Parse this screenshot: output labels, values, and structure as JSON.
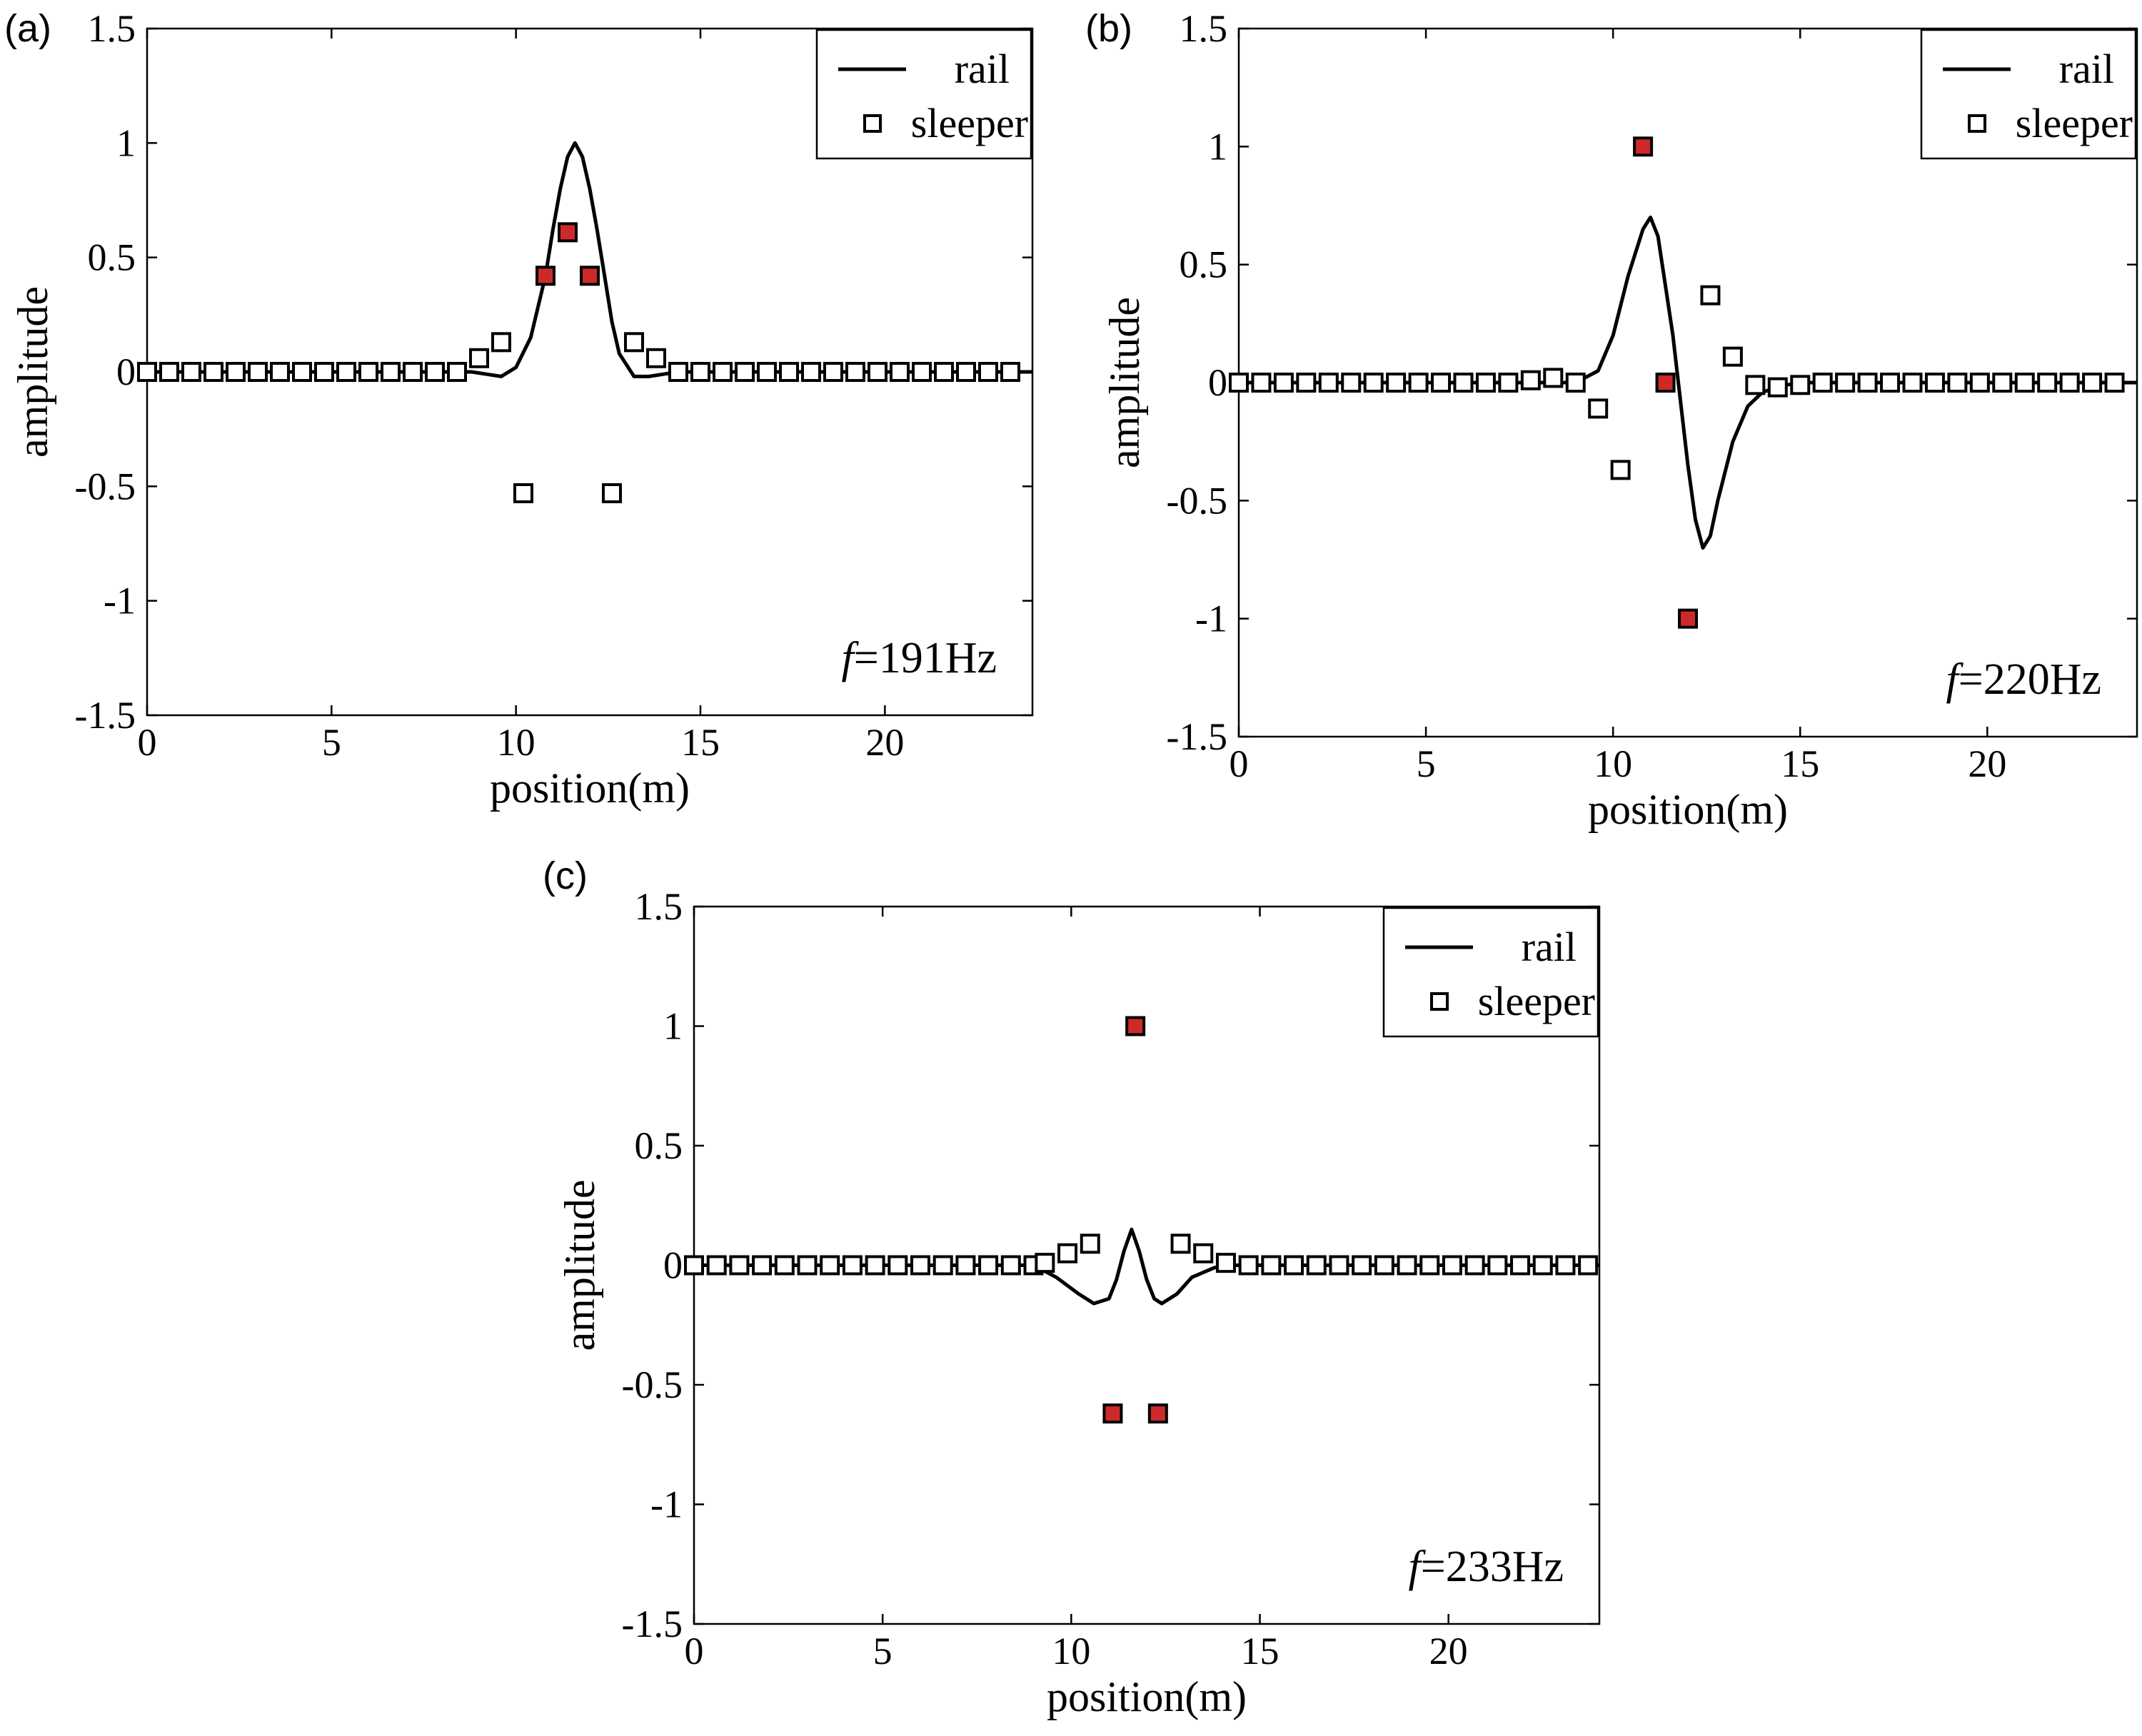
{
  "chart_data": [
    {
      "panel_label": "(a)",
      "type": "line",
      "xlabel": "position(m)",
      "ylabel": "amplitude",
      "xlim": [
        0,
        24
      ],
      "ylim": [
        -1.5,
        1.5
      ],
      "xticks": [
        0,
        5,
        10,
        15,
        20
      ],
      "yticks": [
        -1.5,
        -1,
        -0.5,
        0,
        0.5,
        1,
        1.5
      ],
      "xtick_labels": [
        "0",
        "5",
        "10",
        "15",
        "20"
      ],
      "ytick_labels": [
        "-1.5",
        "-1",
        "-0.5",
        "0",
        "0.5",
        "1",
        "1.5"
      ],
      "grid": false,
      "legend": {
        "position": "top-right",
        "entries": [
          "rail",
          "sleeper"
        ]
      },
      "annotation": {
        "italic": "f",
        "text": "=191Hz"
      },
      "series": [
        {
          "name": "rail",
          "style": "line",
          "color": "#000000",
          "x": [
            0,
            8.8,
            9.2,
            9.6,
            10.0,
            10.4,
            10.8,
            11.0,
            11.2,
            11.4,
            11.6,
            11.8,
            12.0,
            12.2,
            12.4,
            12.6,
            12.8,
            13.2,
            13.6,
            14.0,
            14.4,
            14.8,
            24
          ],
          "y": [
            0,
            0,
            -0.01,
            -0.02,
            0.02,
            0.15,
            0.42,
            0.62,
            0.8,
            0.94,
            1.0,
            0.94,
            0.8,
            0.62,
            0.42,
            0.22,
            0.08,
            -0.02,
            -0.02,
            -0.01,
            0.0,
            0.0,
            0.0
          ]
        },
        {
          "name": "sleeper",
          "style": "square-markers",
          "color": "#000000",
          "x": [
            0,
            0.6,
            1.2,
            1.8,
            2.4,
            3.0,
            3.6,
            4.2,
            4.8,
            5.4,
            6.0,
            6.6,
            7.2,
            7.8,
            8.4,
            9.0,
            9.6,
            10.2,
            10.8,
            11.4,
            12.0,
            12.6,
            13.2,
            13.8,
            14.4,
            15.0,
            15.6,
            16.2,
            16.8,
            17.4,
            18.0,
            18.6,
            19.2,
            19.8,
            20.4,
            21.0,
            21.6,
            22.2,
            22.8,
            23.4
          ],
          "y": [
            0,
            0,
            0,
            0,
            0,
            0,
            0,
            0,
            0,
            0,
            0,
            0,
            0,
            0,
            0,
            0.06,
            0.13,
            -0.53,
            0.42,
            0.61,
            0.42,
            -0.53,
            0.13,
            0.06,
            0,
            0,
            0,
            0,
            0,
            0,
            0,
            0,
            0,
            0,
            0,
            0,
            0,
            0,
            0,
            0
          ],
          "highlighted_indices": [
            18,
            19,
            20
          ],
          "highlight_color": "#cc2a2a"
        }
      ]
    },
    {
      "panel_label": "(b)",
      "type": "line",
      "xlabel": "position(m)",
      "ylabel": "amplitude",
      "xlim": [
        0,
        24
      ],
      "ylim": [
        -1.5,
        1.5
      ],
      "xticks": [
        0,
        5,
        10,
        15,
        20
      ],
      "yticks": [
        -1.5,
        -1,
        -0.5,
        0,
        0.5,
        1,
        1.5
      ],
      "xtick_labels": [
        "0",
        "5",
        "10",
        "15",
        "20"
      ],
      "ytick_labels": [
        "-1.5",
        "-1",
        "-0.5",
        "0",
        "0.5",
        "1",
        "1.5"
      ],
      "grid": false,
      "legend": {
        "position": "top-right",
        "entries": [
          "rail",
          "sleeper"
        ]
      },
      "annotation": {
        "italic": "f",
        "text": "=220Hz"
      },
      "series": [
        {
          "name": "rail",
          "style": "line",
          "color": "#000000",
          "x": [
            0,
            8.4,
            9.0,
            9.6,
            10.0,
            10.4,
            10.8,
            11.0,
            11.2,
            11.6,
            12.0,
            12.2,
            12.4,
            12.6,
            12.8,
            13.2,
            13.6,
            14.0,
            14.6,
            15.2,
            24
          ],
          "y": [
            0,
            0,
            0,
            0.05,
            0.2,
            0.45,
            0.65,
            0.7,
            0.62,
            0.2,
            -0.35,
            -0.58,
            -0.7,
            -0.65,
            -0.5,
            -0.25,
            -0.1,
            -0.04,
            -0.01,
            0,
            0
          ]
        },
        {
          "name": "sleeper",
          "style": "square-markers",
          "color": "#000000",
          "x": [
            0,
            0.6,
            1.2,
            1.8,
            2.4,
            3.0,
            3.6,
            4.2,
            4.8,
            5.4,
            6.0,
            6.6,
            7.2,
            7.8,
            8.4,
            9.0,
            9.6,
            10.2,
            10.8,
            11.4,
            12.0,
            12.6,
            13.2,
            13.8,
            14.4,
            15.0,
            15.6,
            16.2,
            16.8,
            17.4,
            18.0,
            18.6,
            19.2,
            19.8,
            20.4,
            21.0,
            21.6,
            22.2,
            22.8,
            23.4
          ],
          "y": [
            0,
            0,
            0,
            0,
            0,
            0,
            0,
            0,
            0,
            0,
            0,
            0,
            0,
            0.01,
            0.02,
            0,
            -0.11,
            -0.37,
            1.0,
            0,
            -1.0,
            0.37,
            0.11,
            -0.01,
            -0.02,
            -0.01,
            0,
            0,
            0,
            0,
            0,
            0,
            0,
            0,
            0,
            0,
            0,
            0,
            0,
            0
          ],
          "highlighted_indices": [
            18,
            19,
            20
          ],
          "highlight_color": "#cc2a2a"
        }
      ]
    },
    {
      "panel_label": "(c)",
      "type": "line",
      "xlabel": "position(m)",
      "ylabel": "amplitude",
      "xlim": [
        0,
        24
      ],
      "ylim": [
        -1.5,
        1.5
      ],
      "xticks": [
        0,
        5,
        10,
        15,
        20
      ],
      "yticks": [
        -1.5,
        -1,
        -0.5,
        0,
        0.5,
        1,
        1.5
      ],
      "xtick_labels": [
        "0",
        "5",
        "10",
        "15",
        "20"
      ],
      "ytick_labels": [
        "-1.5",
        "-1",
        "-0.5",
        "0",
        "0.5",
        "1",
        "1.5"
      ],
      "grid": false,
      "legend": {
        "position": "top-right",
        "entries": [
          "rail",
          "sleeper"
        ]
      },
      "annotation": {
        "italic": "f",
        "text": "=233Hz"
      },
      "series": [
        {
          "name": "rail",
          "style": "line",
          "color": "#000000",
          "x": [
            0,
            9.0,
            9.6,
            10.2,
            10.6,
            11.0,
            11.2,
            11.4,
            11.6,
            11.8,
            12.0,
            12.2,
            12.4,
            12.8,
            13.2,
            13.8,
            14.4,
            24
          ],
          "y": [
            0,
            0,
            -0.05,
            -0.12,
            -0.16,
            -0.14,
            -0.06,
            0.06,
            0.15,
            0.06,
            -0.06,
            -0.14,
            -0.16,
            -0.12,
            -0.05,
            -0.01,
            0,
            0
          ]
        },
        {
          "name": "sleeper",
          "style": "square-markers",
          "color": "#000000",
          "x": [
            0,
            0.6,
            1.2,
            1.8,
            2.4,
            3.0,
            3.6,
            4.2,
            4.8,
            5.4,
            6.0,
            6.6,
            7.2,
            7.8,
            8.4,
            9.0,
            9.3,
            9.9,
            10.5,
            11.1,
            11.7,
            12.3,
            12.9,
            13.5,
            14.1,
            14.7,
            15.3,
            15.9,
            16.5,
            17.1,
            17.7,
            18.3,
            18.9,
            19.5,
            20.1,
            20.7,
            21.3,
            21.9,
            22.5,
            23.1,
            23.7
          ],
          "y": [
            0,
            0,
            0,
            0,
            0,
            0,
            0,
            0,
            0,
            0,
            0,
            0,
            0,
            0,
            0,
            0,
            0.01,
            0.05,
            0.09,
            -0.62,
            1.0,
            -0.62,
            0.09,
            0.05,
            0.01,
            0,
            0,
            0,
            0,
            0,
            0,
            0,
            0,
            0,
            0,
            0,
            0,
            0,
            0,
            0,
            0
          ],
          "highlighted_indices": [
            19,
            20,
            21
          ],
          "highlight_color": "#cc2a2a"
        }
      ]
    }
  ]
}
